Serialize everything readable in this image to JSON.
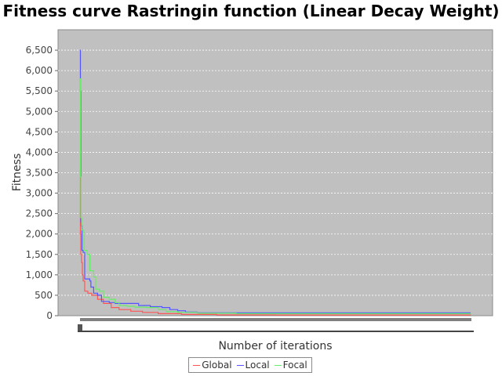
{
  "chart_data": {
    "type": "line",
    "title": "Fitness curve Rastringin function (Linear Decay Weight)",
    "xlabel": "Number of iterations",
    "ylabel": "Fitness",
    "ylim": [
      0,
      7000
    ],
    "yticks": [
      0,
      500,
      1000,
      1500,
      2000,
      2500,
      3000,
      3500,
      4000,
      4500,
      5000,
      5500,
      6000,
      6500
    ],
    "xlim": [
      0,
      1000
    ],
    "grid": true,
    "legend": "bottom-center",
    "plot_background": "#c0c0c0",
    "series": [
      {
        "name": "Global",
        "color": "#ff5555",
        "points": [
          [
            0,
            3600
          ],
          [
            1,
            2000
          ],
          [
            2,
            1500
          ],
          [
            4,
            1300
          ],
          [
            6,
            1000
          ],
          [
            8,
            850
          ],
          [
            12,
            600
          ],
          [
            20,
            550
          ],
          [
            30,
            500
          ],
          [
            45,
            400
          ],
          [
            60,
            300
          ],
          [
            80,
            200
          ],
          [
            100,
            150
          ],
          [
            130,
            110
          ],
          [
            160,
            80
          ],
          [
            200,
            50
          ],
          [
            260,
            30
          ],
          [
            350,
            20
          ],
          [
            500,
            18
          ],
          [
            1000,
            15
          ]
        ]
      },
      {
        "name": "Local",
        "color": "#5555ff",
        "points": [
          [
            0,
            6500
          ],
          [
            1,
            5500
          ],
          [
            2,
            2300
          ],
          [
            3,
            2200
          ],
          [
            5,
            1600
          ],
          [
            8,
            1550
          ],
          [
            12,
            900
          ],
          [
            25,
            850
          ],
          [
            28,
            700
          ],
          [
            35,
            550
          ],
          [
            45,
            500
          ],
          [
            55,
            350
          ],
          [
            75,
            320
          ],
          [
            90,
            300
          ],
          [
            110,
            300
          ],
          [
            150,
            250
          ],
          [
            180,
            220
          ],
          [
            210,
            200
          ],
          [
            230,
            150
          ],
          [
            250,
            120
          ],
          [
            270,
            90
          ],
          [
            300,
            70
          ],
          [
            400,
            70
          ],
          [
            1000,
            70
          ]
        ]
      },
      {
        "name": "Focal",
        "color": "#66ee66",
        "points": [
          [
            0,
            5800
          ],
          [
            1,
            3400
          ],
          [
            2,
            2400
          ],
          [
            4,
            2100
          ],
          [
            8,
            2050
          ],
          [
            10,
            1600
          ],
          [
            18,
            1500
          ],
          [
            25,
            1100
          ],
          [
            35,
            950
          ],
          [
            40,
            650
          ],
          [
            50,
            600
          ],
          [
            60,
            450
          ],
          [
            75,
            400
          ],
          [
            90,
            320
          ],
          [
            100,
            250
          ],
          [
            120,
            230
          ],
          [
            140,
            210
          ],
          [
            170,
            200
          ],
          [
            200,
            150
          ],
          [
            220,
            100
          ],
          [
            250,
            80
          ],
          [
            300,
            60
          ],
          [
            400,
            50
          ],
          [
            1000,
            45
          ]
        ]
      }
    ]
  }
}
